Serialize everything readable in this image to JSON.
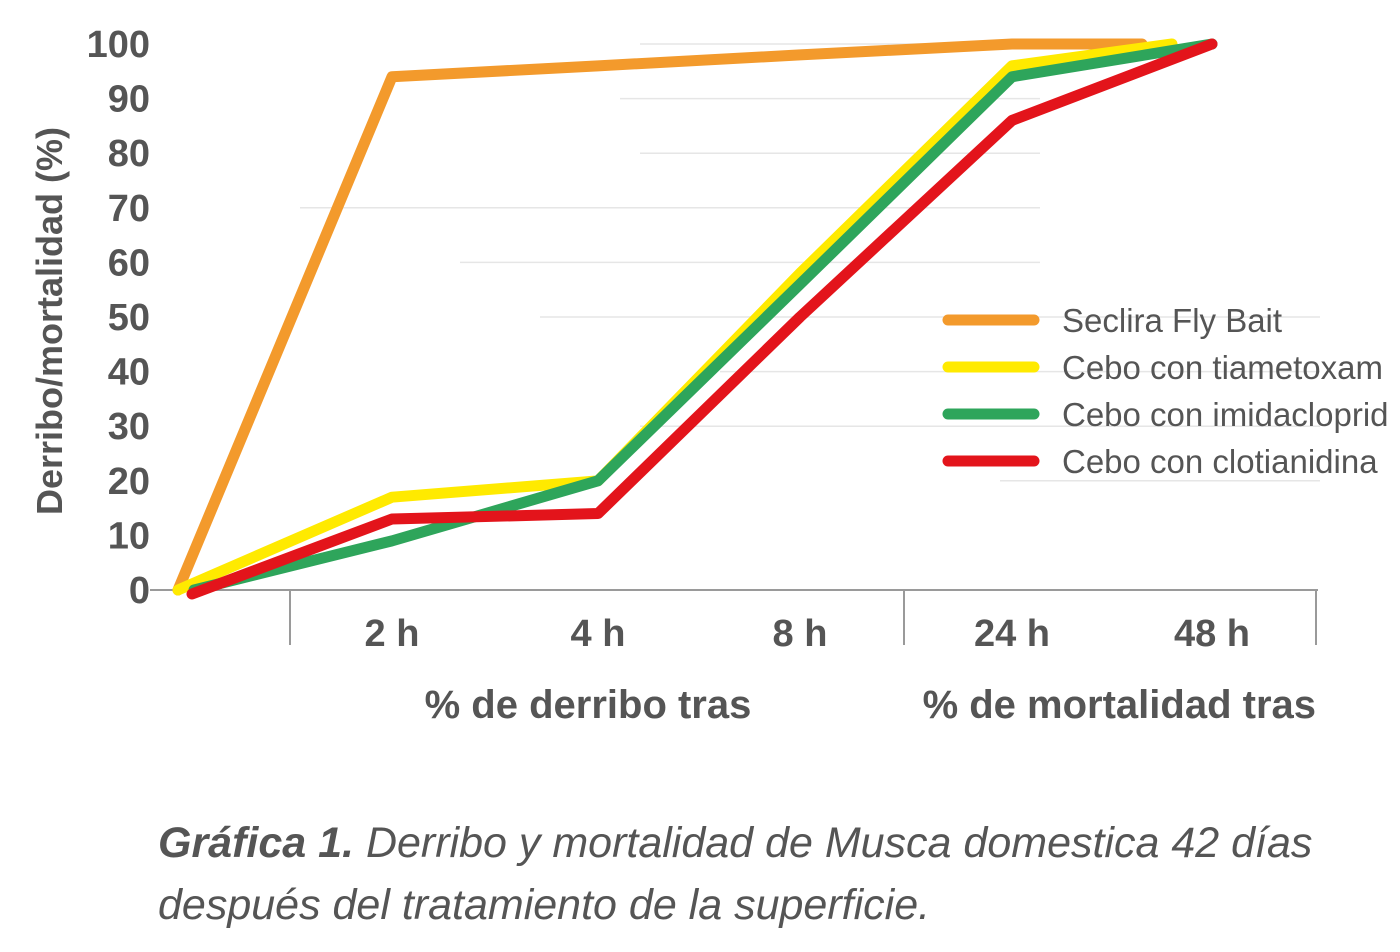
{
  "chart_data": {
    "type": "line",
    "title": "",
    "ylabel": "Derribo/mortalidad (%)",
    "ylim": [
      0,
      100
    ],
    "yticks": [
      "0",
      "10",
      "20",
      "30",
      "40",
      "50",
      "60",
      "70",
      "80",
      "90",
      "100"
    ],
    "categories": [
      "",
      "2 h",
      "4 h",
      "8 h",
      "24 h",
      "48 h"
    ],
    "groups": [
      {
        "label": "% de derribo tras",
        "categories": [
          "2 h",
          "4 h",
          "8 h"
        ]
      },
      {
        "label": "% de mortalidad tras",
        "categories": [
          "24 h",
          "48 h"
        ]
      }
    ],
    "grid": true,
    "legend_position": "right",
    "series": [
      {
        "name": "Seclira Fly Bait",
        "color": "#F39A2C",
        "values": [
          0,
          94,
          96,
          98,
          100,
          100
        ]
      },
      {
        "name": "Cebo con tiametoxam",
        "color": "#FFEA00",
        "values": [
          0,
          17,
          20,
          58,
          96,
          100
        ]
      },
      {
        "name": "Cebo con imidacloprid",
        "color": "#2EA55B",
        "values": [
          0,
          9,
          20,
          56,
          94,
          100
        ]
      },
      {
        "name": "Cebo con clotianidina",
        "color": "#E3141B",
        "values": [
          0,
          13,
          14,
          50,
          86,
          100
        ]
      }
    ]
  },
  "caption": {
    "lead": "Gráfica 1.",
    "text": "Derribo y mortalidad de Musca domestica 42 días después del tratamiento de la superficie."
  }
}
